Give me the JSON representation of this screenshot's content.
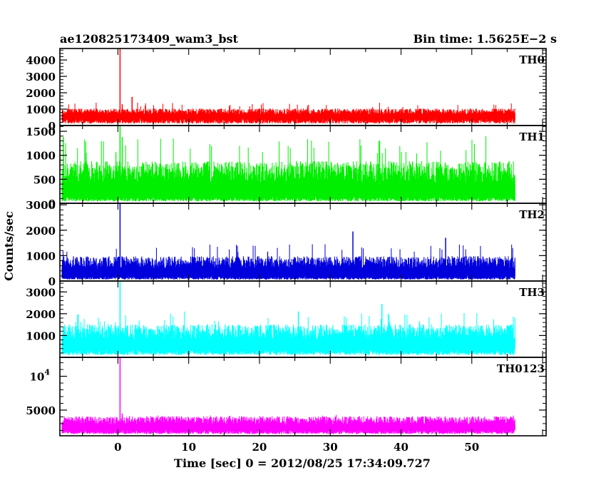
{
  "header": {
    "title": "ae120825173409_wam3_bst",
    "bin_time": "Bin time: 1.5625E−2 s"
  },
  "chart_data": {
    "type": "line",
    "xlabel": "Time [sec] 0 = 2012/08/25 17:34:09.727",
    "ylabel": "Counts/sec",
    "xlim": [
      -8.2,
      60.5
    ],
    "x_ticks": [
      0,
      10,
      20,
      30,
      40,
      50
    ],
    "x_ticklabels": [
      "0",
      "10",
      "20",
      "30",
      "40",
      "50"
    ],
    "grid": false,
    "panels": [
      {
        "name": "TH0",
        "color": "#ff0000",
        "ylim": [
          0,
          4700
        ],
        "y_ticks": [
          0,
          1000,
          2000,
          3000,
          4000
        ],
        "y_ticklabels": [
          "0",
          "1000",
          "2000",
          "3000",
          "4000"
        ],
        "time_range": [
          -7.9,
          56.1
        ],
        "base": 480,
        "spread": 560,
        "noise_peak": 1400,
        "spikes": [
          [
            0.3,
            4700
          ],
          [
            2.0,
            1750
          ],
          [
            0.6,
            1300
          ]
        ]
      },
      {
        "name": "TH1",
        "color": "#00ee00",
        "ylim": [
          0,
          1620
        ],
        "y_ticks": [
          0,
          500,
          1000,
          1500
        ],
        "y_ticklabels": [
          "0",
          "500",
          "1000",
          "1500"
        ],
        "time_range": [
          -7.9,
          56.1
        ],
        "base": 160,
        "spread": 720,
        "noise_peak": 1400,
        "spikes": [
          [
            0.3,
            1620
          ],
          [
            0.6,
            1380
          ],
          [
            -7.7,
            1380
          ]
        ]
      },
      {
        "name": "TH2",
        "color": "#0000dd",
        "ylim": [
          0,
          3060
        ],
        "y_ticks": [
          0,
          1000,
          2000,
          3000
        ],
        "y_ticklabels": [
          "0",
          "1000",
          "2000",
          "3000"
        ],
        "time_range": [
          -7.9,
          56.1
        ],
        "base": 220,
        "spread": 760,
        "noise_peak": 1500,
        "spikes": [
          [
            0.3,
            3060
          ],
          [
            33.2,
            1950
          ],
          [
            46.3,
            1700
          ]
        ]
      },
      {
        "name": "TH3",
        "color": "#00ffff",
        "ylim": [
          0,
          3500
        ],
        "y_ticks": [
          1000,
          2000,
          3000
        ],
        "y_ticklabels": [
          "1000",
          "2000",
          "3000"
        ],
        "time_range": [
          -7.9,
          56.1
        ],
        "base": 420,
        "spread": 1100,
        "noise_peak": 2100,
        "spikes": [
          [
            0.3,
            3500
          ],
          [
            37.3,
            2450
          ],
          [
            25.5,
            2100
          ]
        ]
      },
      {
        "name": "TH0123",
        "color": "#ff00ff",
        "ylim": [
          1200,
          12800
        ],
        "y_ticks": [
          5000,
          10000
        ],
        "y_ticklabels": [
          "5000",
          "10^4"
        ],
        "time_range": [
          -7.9,
          56.1
        ],
        "base": 2200,
        "spread": 1900,
        "noise_peak": 4300,
        "spikes": [
          [
            0.3,
            12800
          ],
          [
            0.6,
            4500
          ]
        ]
      }
    ]
  }
}
